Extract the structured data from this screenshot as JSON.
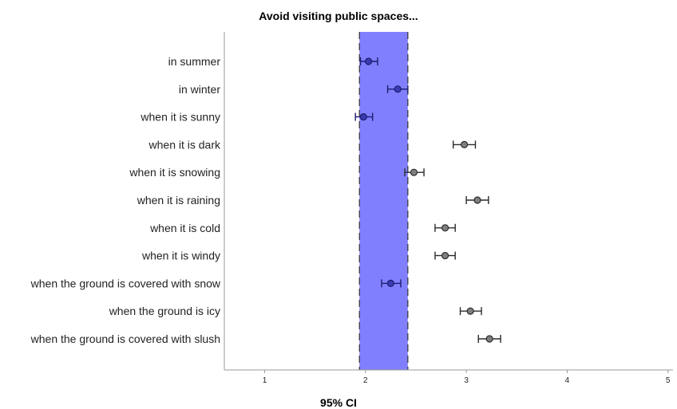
{
  "chart_data": {
    "type": "scatter",
    "subtype": "dot-plot-with-error-bars",
    "title": "Avoid visiting public spaces...",
    "xlabel": "95% CI",
    "xlim": [
      0.6,
      5.05
    ],
    "xticks": [
      1,
      2,
      3,
      4,
      5
    ],
    "grid": false,
    "reference_band": {
      "from": 1.94,
      "to": 2.42,
      "color": "#8080ff"
    },
    "colors": {
      "inside_band": "#3b3bb3",
      "outside_band": "#7f7f7f",
      "axis": "#999999"
    },
    "categories": [
      "in summer",
      "in winter",
      "when it is sunny",
      "when it is dark",
      "when it is snowing",
      "when it is raining",
      "when it is cold",
      "when it is windy",
      "when the ground is covered with snow",
      "when the ground is icy",
      "when the ground is covered with slush"
    ],
    "points": [
      {
        "mean": 2.03,
        "low": 1.95,
        "high": 2.12
      },
      {
        "mean": 2.32,
        "low": 2.22,
        "high": 2.42
      },
      {
        "mean": 1.98,
        "low": 1.9,
        "high": 2.07
      },
      {
        "mean": 2.98,
        "low": 2.87,
        "high": 3.09
      },
      {
        "mean": 2.48,
        "low": 2.39,
        "high": 2.58
      },
      {
        "mean": 3.11,
        "low": 3.0,
        "high": 3.22
      },
      {
        "mean": 2.79,
        "low": 2.69,
        "high": 2.89
      },
      {
        "mean": 2.79,
        "low": 2.69,
        "high": 2.89
      },
      {
        "mean": 2.25,
        "low": 2.16,
        "high": 2.35
      },
      {
        "mean": 3.04,
        "low": 2.94,
        "high": 3.15
      },
      {
        "mean": 3.23,
        "low": 3.12,
        "high": 3.34
      }
    ]
  }
}
